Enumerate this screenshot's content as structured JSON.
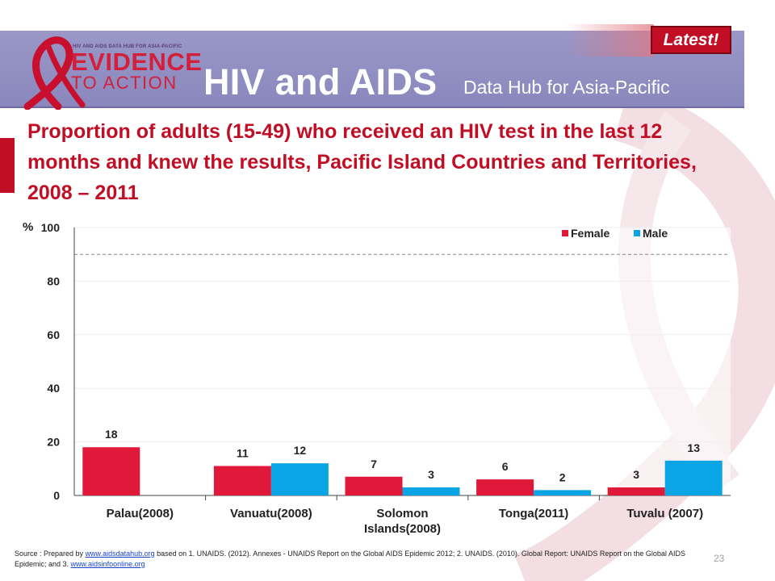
{
  "header": {
    "logo_small_text": "HIV AND AIDS DATA HUB FOR ASIA-PACIFIC",
    "logo_line1": "EVIDENCE",
    "logo_line2": "TO ACTION",
    "title": "HIV and AIDS",
    "subtitle": "Data Hub for Asia-Pacific",
    "badge": "Latest!"
  },
  "slide_title": "Proportion of adults (15-49) who received an HIV test in the last 12 months and knew the results, Pacific Island Countries and Territories, 2008 – 2011",
  "source": {
    "prefix": "Source : Prepared by ",
    "link1": "www.aidsdatahub.org",
    "middle": " based on 1. UNAIDS. (2012). Annexes - UNAIDS Report on the Global AIDS Epidemic 2012; 2. UNAIDS. (2010). Global Report: UNAIDS Report on the Global AIDS Epidemic; and 3. ",
    "link2": "www.aidsinfoonline.org"
  },
  "page_number": "23",
  "colors": {
    "female": "#e0193a",
    "male": "#0aa5e4",
    "accent": "#c20e24",
    "header": "#8a87bd"
  },
  "chart_data": {
    "type": "bar",
    "title": "",
    "ylabel": "%",
    "ylim": [
      0,
      100
    ],
    "yticks": [
      0,
      20,
      40,
      60,
      80,
      100
    ],
    "legend_position": "top-right",
    "reference_line": 90,
    "categories": [
      "Palau(2008)",
      "Vanuatu(2008)",
      "Solomon Islands(2008)",
      "Tonga(2011)",
      "Tuvalu (2007)"
    ],
    "category_labels": [
      [
        "Palau(2008)"
      ],
      [
        "Vanuatu(2008)"
      ],
      [
        "Solomon",
        "Islands(2008)"
      ],
      [
        "Tonga(2011)"
      ],
      [
        "Tuvalu (2007)"
      ]
    ],
    "series": [
      {
        "name": "Female",
        "values": [
          18,
          11,
          7,
          6,
          3
        ]
      },
      {
        "name": "Male",
        "values": [
          null,
          12,
          3,
          2,
          13
        ]
      }
    ]
  }
}
